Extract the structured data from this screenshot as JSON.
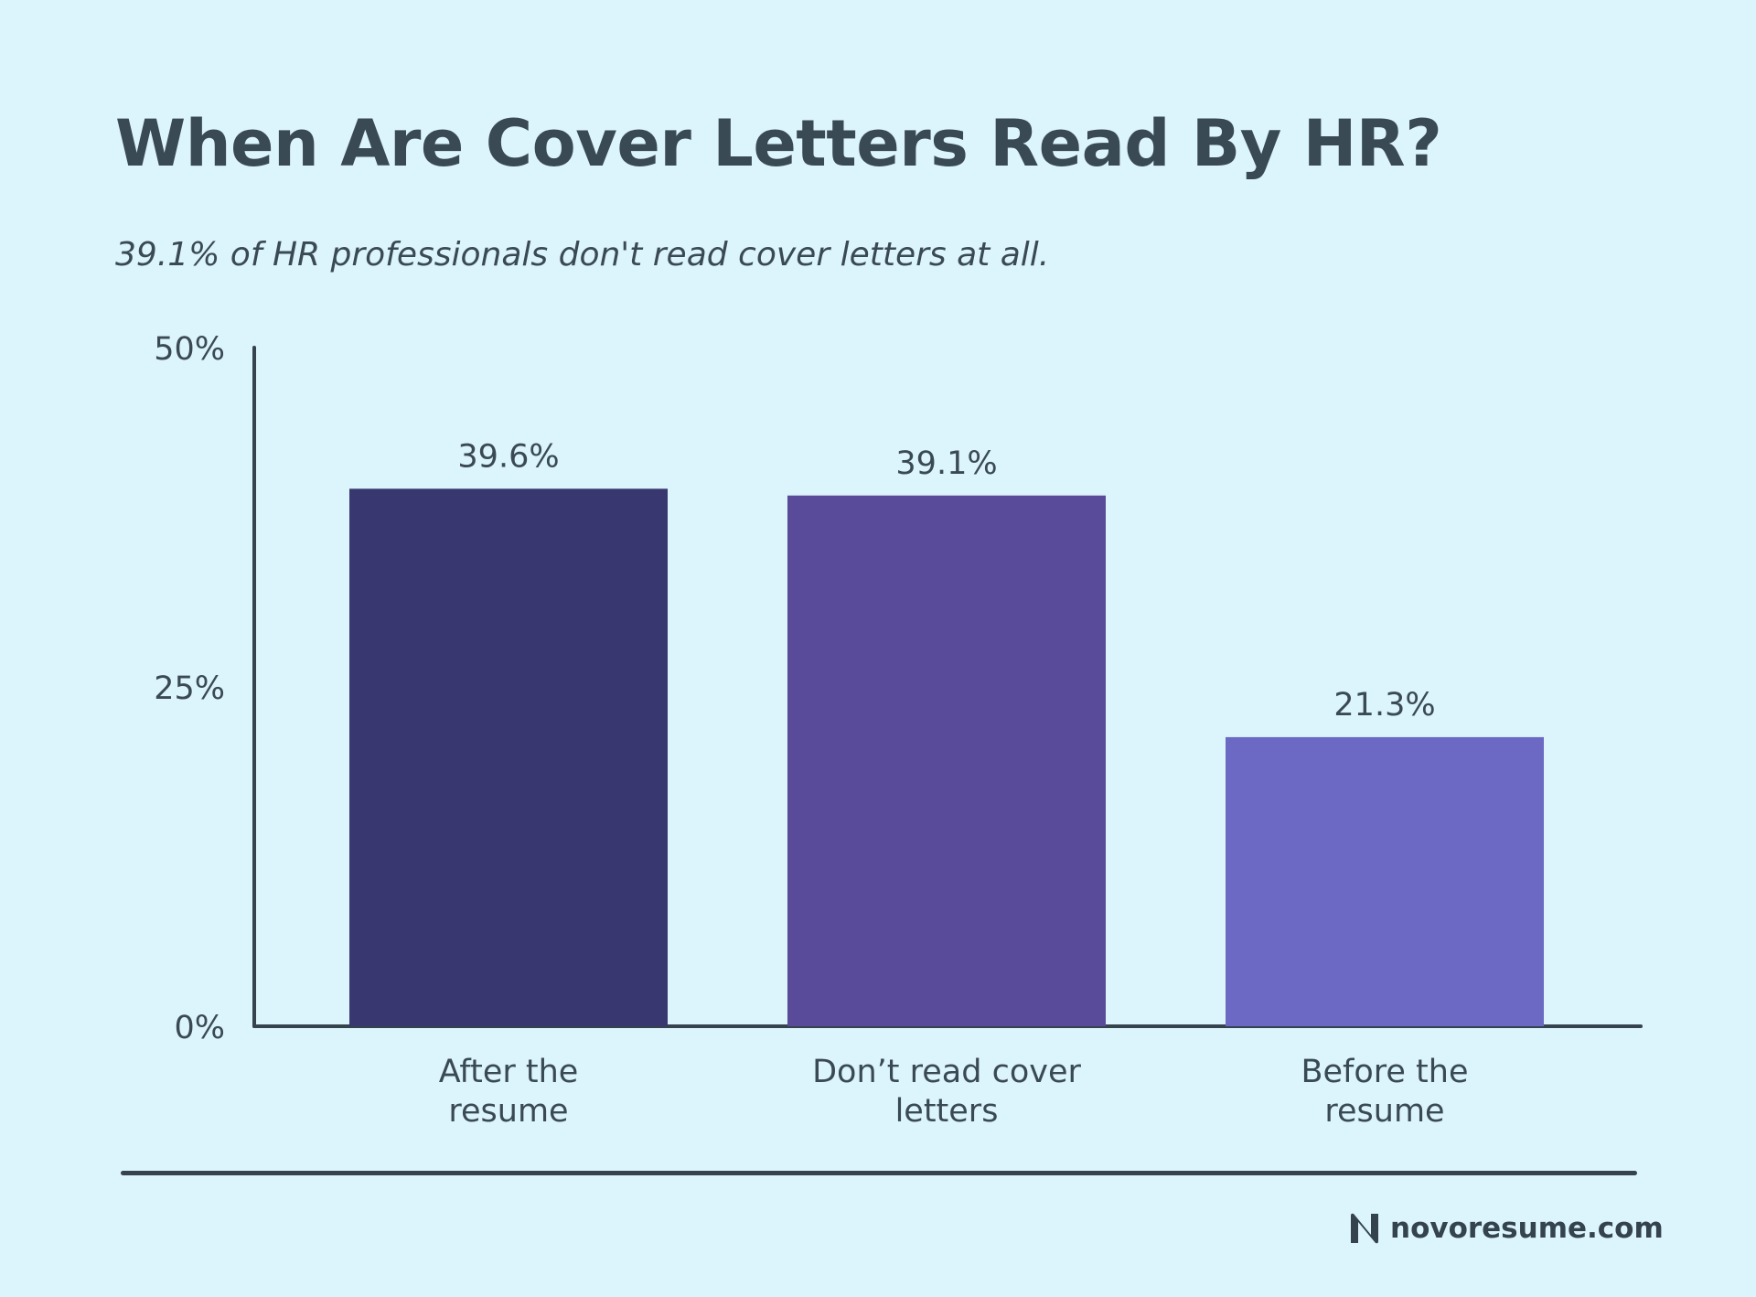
{
  "header": {
    "title": "When Are Cover Letters Read By HR?",
    "subtitle": "39.1% of HR professionals don't read cover letters at all."
  },
  "chart_data": {
    "type": "bar",
    "title": "When Are Cover Letters Read By HR?",
    "subtitle": "39.1% of HR professionals don't read cover letters at all.",
    "categories": [
      [
        "After the",
        "resume"
      ],
      [
        "Don’t read cover",
        "letters"
      ],
      [
        "Before the",
        "resume"
      ]
    ],
    "values": [
      39.6,
      39.1,
      21.3
    ],
    "value_labels": [
      "39.6%",
      "39.1%",
      "21.3%"
    ],
    "bar_colors": [
      "#393770",
      "#594a9a",
      "#6b69c3"
    ],
    "ylim": [
      0,
      50
    ],
    "yticks": [
      {
        "value": 0,
        "label": "0%"
      },
      {
        "value": 25,
        "label": "25%"
      },
      {
        "value": 50,
        "label": "50%"
      }
    ],
    "xlabel": "",
    "ylabel": "",
    "grid": false,
    "legend": "none"
  },
  "colors": {
    "background": "#dcf4fb",
    "text": "#3a4a55",
    "axis": "#34434d"
  },
  "footer": {
    "brand": "novoresume.com",
    "logo_icon": "novoresume-n-logo-icon"
  }
}
